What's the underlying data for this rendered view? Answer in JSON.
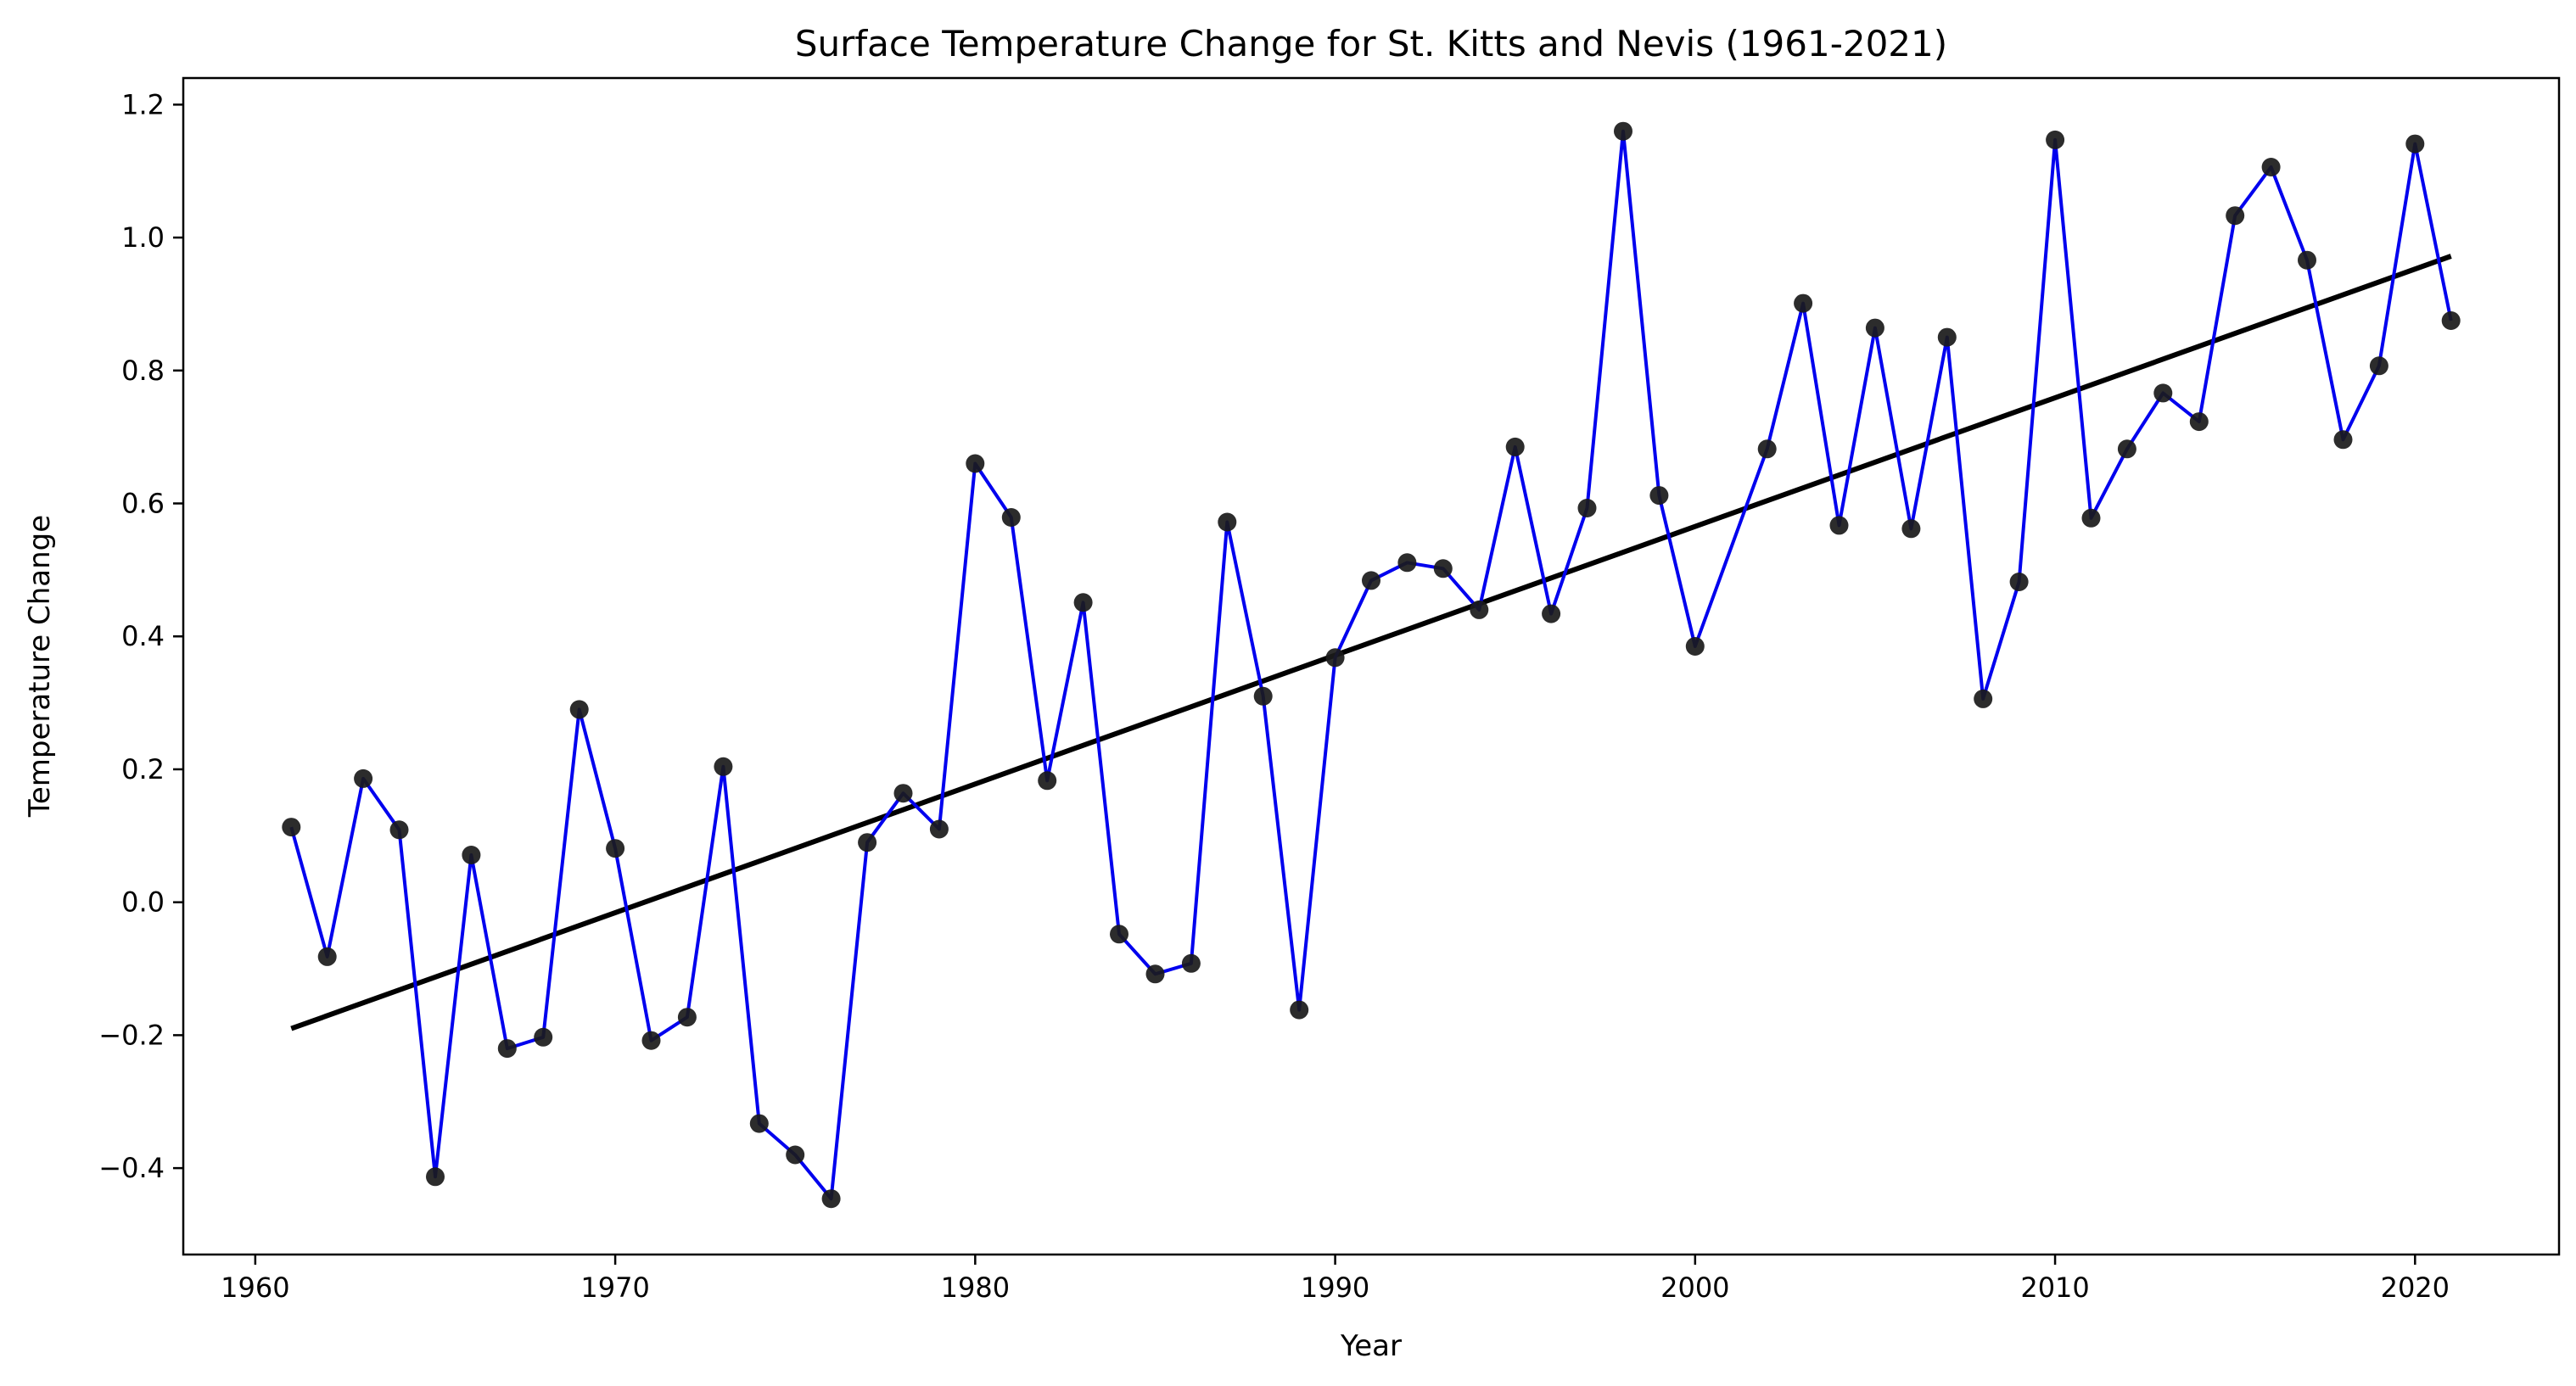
{
  "chart_data": {
    "type": "line",
    "title": "Surface Temperature Change for St. Kitts and Nevis (1961-2021)",
    "xlabel": "Year",
    "ylabel": "Temperature Change",
    "xlim": [
      1958,
      2024
    ],
    "ylim": [
      -0.53,
      1.24
    ],
    "xticks": [
      1960,
      1970,
      1980,
      1990,
      2000,
      2010,
      2020
    ],
    "yticks": [
      -0.4,
      -0.2,
      0.0,
      0.2,
      0.4,
      0.6,
      0.8,
      1.0,
      1.2
    ],
    "ytick_labels": [
      "−0.4",
      "−0.2",
      "0.0",
      "0.2",
      "0.4",
      "0.6",
      "0.8",
      "1.0",
      "1.2"
    ],
    "grid": false,
    "legend": "none",
    "series": [
      {
        "style": "line-with-markers",
        "color": "#0000ee",
        "marker_color": "#1a1a1a",
        "x": [
          1961,
          1962,
          1963,
          1964,
          1965,
          1966,
          1967,
          1968,
          1969,
          1970,
          1971,
          1972,
          1973,
          1974,
          1975,
          1976,
          1977,
          1978,
          1979,
          1980,
          1981,
          1982,
          1983,
          1984,
          1985,
          1986,
          1987,
          1988,
          1989,
          1990,
          1991,
          1992,
          1993,
          1994,
          1995,
          1996,
          1997,
          1998,
          1999,
          2000,
          2002,
          2003,
          2004,
          2005,
          2006,
          2007,
          2008,
          2009,
          2010,
          2011,
          2012,
          2013,
          2014,
          2015,
          2016,
          2017,
          2018,
          2019,
          2020,
          2021
        ],
        "values": [
          0.113,
          -0.082,
          0.186,
          0.109,
          -0.413,
          0.071,
          -0.22,
          -0.203,
          0.29,
          0.081,
          -0.208,
          -0.173,
          0.204,
          -0.333,
          -0.38,
          -0.446,
          0.09,
          0.164,
          0.11,
          0.66,
          0.579,
          0.183,
          0.451,
          -0.048,
          -0.108,
          -0.092,
          0.572,
          0.31,
          -0.162,
          0.368,
          0.484,
          0.511,
          0.502,
          0.44,
          0.685,
          0.434,
          0.593,
          1.16,
          0.612,
          0.385,
          0.682,
          0.901,
          0.567,
          0.864,
          0.562,
          0.85,
          0.306,
          0.482,
          1.147,
          0.578,
          0.682,
          0.766,
          0.723,
          1.033,
          1.106,
          0.966,
          0.696,
          0.807,
          1.141,
          0.875
        ]
      },
      {
        "style": "trend-line",
        "color": "#000000",
        "x": [
          1961,
          2021
        ],
        "values": [
          -0.19,
          0.972
        ]
      }
    ]
  }
}
